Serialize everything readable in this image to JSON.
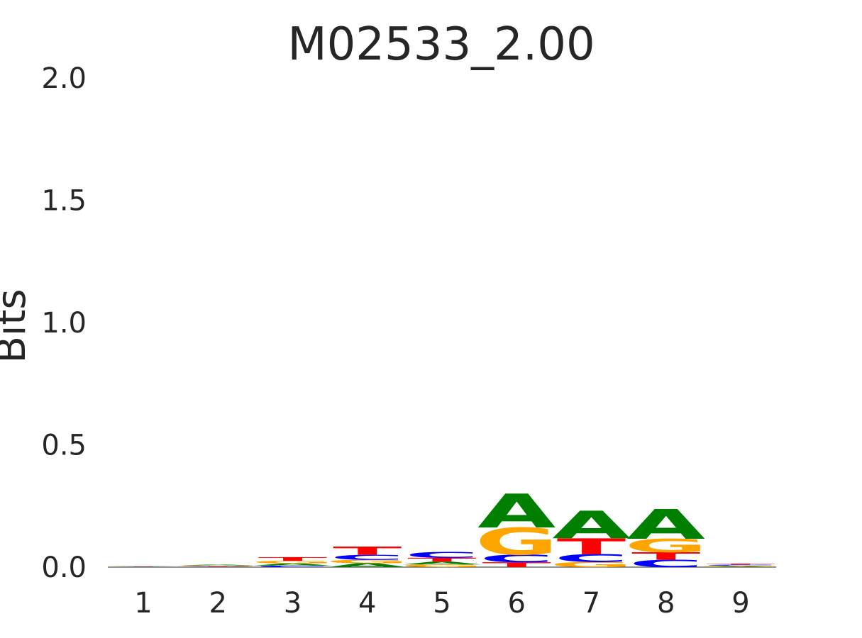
{
  "chart_data": {
    "type": "sequence-logo",
    "title": "M02533_2.00",
    "xlabel": "",
    "ylabel": "Bits",
    "ylim": [
      0,
      2.0
    ],
    "yticks": [
      "0.0",
      "0.5",
      "1.0",
      "1.5",
      "2.0"
    ],
    "positions": [
      "1",
      "2",
      "3",
      "4",
      "5",
      "6",
      "7",
      "8",
      "9"
    ],
    "grid": false,
    "letter_colors": {
      "A": "#008000",
      "C": "#0000ff",
      "G": "#ffa500",
      "T": "#ff0000"
    },
    "stacks": [
      [
        {
          "base": "C",
          "bits": 0.001
        },
        {
          "base": "G",
          "bits": 0.001
        },
        {
          "base": "T",
          "bits": 0.001
        },
        {
          "base": "A",
          "bits": 0.001
        }
      ],
      [
        {
          "base": "C",
          "bits": 0.002
        },
        {
          "base": "T",
          "bits": 0.002
        },
        {
          "base": "G",
          "bits": 0.003
        },
        {
          "base": "A",
          "bits": 0.003
        }
      ],
      [
        {
          "base": "C",
          "bits": 0.006
        },
        {
          "base": "A",
          "bits": 0.009
        },
        {
          "base": "G",
          "bits": 0.011
        },
        {
          "base": "T",
          "bits": 0.015
        }
      ],
      [
        {
          "base": "A",
          "bits": 0.016
        },
        {
          "base": "G",
          "bits": 0.014
        },
        {
          "base": "C",
          "bits": 0.02
        },
        {
          "base": "T",
          "bits": 0.034
        }
      ],
      [
        {
          "base": "G",
          "bits": 0.011
        },
        {
          "base": "A",
          "bits": 0.011
        },
        {
          "base": "T",
          "bits": 0.016
        },
        {
          "base": "C",
          "bits": 0.024
        }
      ],
      [
        {
          "base": "T",
          "bits": 0.02
        },
        {
          "base": "C",
          "bits": 0.031
        },
        {
          "base": "G",
          "bits": 0.111
        },
        {
          "base": "A",
          "bits": 0.139
        }
      ],
      [
        {
          "base": "G",
          "bits": 0.021
        },
        {
          "base": "C",
          "bits": 0.032
        },
        {
          "base": "T",
          "bits": 0.065
        },
        {
          "base": "A",
          "bits": 0.113
        }
      ],
      [
        {
          "base": "C",
          "bits": 0.03
        },
        {
          "base": "T",
          "bits": 0.031
        },
        {
          "base": "G",
          "bits": 0.055
        },
        {
          "base": "A",
          "bits": 0.122
        }
      ],
      [
        {
          "base": "A",
          "bits": 0.003
        },
        {
          "base": "G",
          "bits": 0.003
        },
        {
          "base": "C",
          "bits": 0.004
        },
        {
          "base": "T",
          "bits": 0.004
        }
      ]
    ]
  }
}
